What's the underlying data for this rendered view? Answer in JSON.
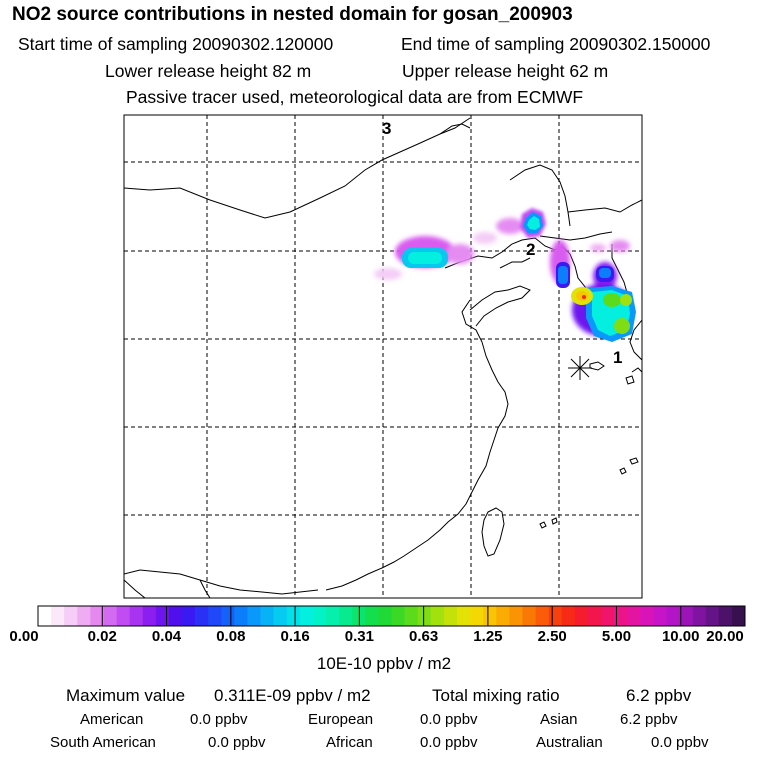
{
  "header": {
    "title": "NO2 source contributions in nested domain for gosan_200903",
    "start_time": "Start time of sampling 20090302.120000",
    "end_time": "End time of sampling 20090302.150000",
    "lower_height": "Lower release height   82 m",
    "upper_height": "Upper release height   62 m",
    "note": "Passive tracer used, meteorological data are from ECMWF"
  },
  "map": {
    "markers": [
      "1",
      "2",
      "3"
    ],
    "receptor": "receptor-star-icon"
  },
  "colorbar": {
    "labels": [
      "0.00",
      "0.02",
      "0.04",
      "0.08",
      "0.16",
      "0.31",
      "0.63",
      "1.25",
      "2.50",
      "5.00",
      "10.00",
      "20.00"
    ],
    "unit": "10E-10 ppbv / m2",
    "colors": [
      "#ffffff",
      "#fbe8fb",
      "#f6cdf6",
      "#f0acf2",
      "#e589f0",
      "#d46af2",
      "#c04cf2",
      "#a833f0",
      "#8c1ff0",
      "#6e14ef",
      "#5010ee",
      "#3a1af2",
      "#2a30f5",
      "#1e48f8",
      "#1462fa",
      "#0c7efb",
      "#0a98fa",
      "#08b2f6",
      "#06cbf0",
      "#04e0ea",
      "#04efe0",
      "#04f2c8",
      "#06efac",
      "#08ea8e",
      "#0be46e",
      "#12de4e",
      "#20d836",
      "#3cd826",
      "#5cda1c",
      "#80dd14",
      "#a2e00e",
      "#c4e20a",
      "#e2e206",
      "#f4d804",
      "#f8c404",
      "#faac04",
      "#fa9404",
      "#fa7806",
      "#fa5c0a",
      "#f8400e",
      "#f62a16",
      "#f41c2e",
      "#f2164c",
      "#f0146a",
      "#ec1488",
      "#e414a2",
      "#d814b8",
      "#c814c8",
      "#b414c8",
      "#9c14b8",
      "#8014a0",
      "#641486",
      "#4c126a",
      "#381050"
    ]
  },
  "stats": {
    "max_label": "Maximum value",
    "max_value": "0.311E-09 ppbv / m2",
    "total_label": "Total mixing ratio",
    "total_value": "6.2 ppbv",
    "regions": [
      {
        "name": "American",
        "value": "0.0 ppbv"
      },
      {
        "name": "European",
        "value": "0.0 ppbv"
      },
      {
        "name": "Asian",
        "value": "6.2 ppbv"
      },
      {
        "name": "South American",
        "value": "0.0 ppbv"
      },
      {
        "name": "African",
        "value": "0.0 ppbv"
      },
      {
        "name": "Australian",
        "value": "0.0 ppbv"
      }
    ]
  }
}
